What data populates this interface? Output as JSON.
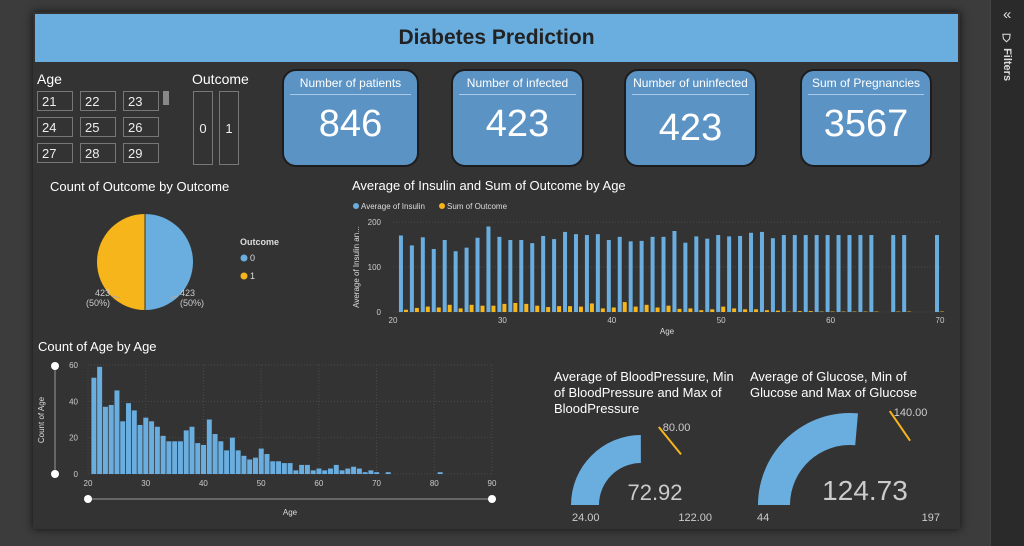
{
  "header": {
    "title": "Diabetes Prediction"
  },
  "slicers": {
    "age_label": "Age",
    "age_values": [
      "21",
      "22",
      "23",
      "24",
      "25",
      "26",
      "27",
      "28",
      "29"
    ],
    "outcome_label": "Outcome",
    "outcome_values": [
      "0",
      "1"
    ]
  },
  "cards": [
    {
      "title": "Number of patients",
      "value": "846"
    },
    {
      "title": "Number of infected",
      "value": "423"
    },
    {
      "title": "Number of uninfected",
      "value": "423"
    },
    {
      "title": "Sum of Pregnancies",
      "value": "3567"
    }
  ],
  "pie": {
    "title": "Count of Outcome by Outcome",
    "legend_title": "Outcome",
    "colors": {
      "0": "#6aaee0",
      "1": "#f7b51c"
    },
    "chart_data": {
      "type": "pie",
      "categories": [
        "0",
        "1"
      ],
      "values": [
        423,
        423
      ],
      "labels": [
        "423\n(50%)",
        "423\n(50%)"
      ],
      "label_0_count": "423",
      "label_0_pct": "(50%)",
      "label_1_count": "423",
      "label_1_pct": "(50%)"
    }
  },
  "combo": {
    "title": "Average of Insulin and Sum of Outcome by Age",
    "chart_data": {
      "type": "bar",
      "xlabel": "Age",
      "ylabel": "Average of Insulin an...",
      "xlim": [
        20,
        70
      ],
      "ylim": [
        0,
        200
      ],
      "xticks": [
        "20",
        "30",
        "40",
        "50",
        "60",
        "70"
      ],
      "yticks": [
        "0",
        "100",
        "200"
      ],
      "x": [
        21,
        22,
        23,
        24,
        25,
        26,
        27,
        28,
        29,
        30,
        31,
        32,
        33,
        34,
        35,
        36,
        37,
        38,
        39,
        40,
        41,
        42,
        43,
        44,
        45,
        46,
        47,
        48,
        49,
        50,
        51,
        52,
        53,
        54,
        55,
        56,
        57,
        58,
        59,
        60,
        61,
        62,
        63,
        64,
        66,
        67,
        70
      ],
      "series": [
        {
          "name": "Average of Insulin",
          "color": "#6aaee0",
          "values": [
            170,
            148,
            166,
            140,
            160,
            135,
            143,
            165,
            190,
            167,
            160,
            160,
            153,
            169,
            162,
            178,
            173,
            171,
            173,
            160,
            167,
            157,
            158,
            167,
            167,
            180,
            154,
            168,
            163,
            171,
            168,
            169,
            176,
            178,
            164,
            171,
            171,
            171,
            171,
            171,
            171,
            171,
            171,
            171,
            171,
            171,
            171
          ]
        },
        {
          "name": "Sum of Outcome",
          "color": "#f7b51c",
          "values": [
            5,
            9,
            12,
            10,
            16,
            8,
            16,
            14,
            14,
            18,
            20,
            18,
            14,
            11,
            13,
            13,
            12,
            19,
            8,
            10,
            22,
            12,
            16,
            10,
            14,
            7,
            8,
            4,
            6,
            12,
            8,
            6,
            6,
            4,
            3,
            1,
            2,
            2,
            1,
            1,
            1,
            1,
            1,
            1,
            1,
            1,
            1
          ]
        }
      ]
    }
  },
  "hist": {
    "title": "Count of Age by Age",
    "chart_data": {
      "type": "bar",
      "xlabel": "Age",
      "ylabel": "Count of Age",
      "xlim": [
        20,
        90
      ],
      "ylim": [
        0,
        60
      ],
      "xticks": [
        "20",
        "30",
        "40",
        "50",
        "60",
        "70",
        "80",
        "90"
      ],
      "yticks": [
        "0",
        "20",
        "40",
        "60"
      ],
      "color": "#6aaee0",
      "x": [
        21,
        22,
        23,
        24,
        25,
        26,
        27,
        28,
        29,
        30,
        31,
        32,
        33,
        34,
        35,
        36,
        37,
        38,
        39,
        40,
        41,
        42,
        43,
        44,
        45,
        46,
        47,
        48,
        49,
        50,
        51,
        52,
        53,
        54,
        55,
        56,
        57,
        58,
        59,
        60,
        61,
        62,
        63,
        64,
        65,
        66,
        67,
        68,
        69,
        70,
        72,
        81
      ],
      "values": [
        53,
        59,
        37,
        38,
        46,
        29,
        39,
        35,
        27,
        31,
        29,
        26,
        21,
        18,
        18,
        18,
        24,
        26,
        17,
        16,
        30,
        22,
        18,
        13,
        20,
        13,
        10,
        8,
        9,
        14,
        11,
        7,
        7,
        6,
        6,
        2,
        5,
        5,
        2,
        3,
        2,
        3,
        5,
        2,
        3,
        4,
        3,
        1,
        2,
        1,
        1,
        1
      ]
    }
  },
  "gauges": [
    {
      "title": "Average of BloodPressure, Min of BloodPressure and Max of BloodPressure",
      "value": 72.92,
      "value_label": "72.92",
      "min": 24,
      "min_label": "24.00",
      "max": 122,
      "max_label": "122.00",
      "target": 80,
      "target_label": "80.00"
    },
    {
      "title": "Average of Glucose, Min of Glucose and Max of Glucose",
      "value": 124.73,
      "value_label": "124.73",
      "min": 44,
      "min_label": "44",
      "max": 197,
      "max_label": "197",
      "target": 140,
      "target_label": "140.00"
    }
  ],
  "filters": {
    "label": "Filters"
  }
}
